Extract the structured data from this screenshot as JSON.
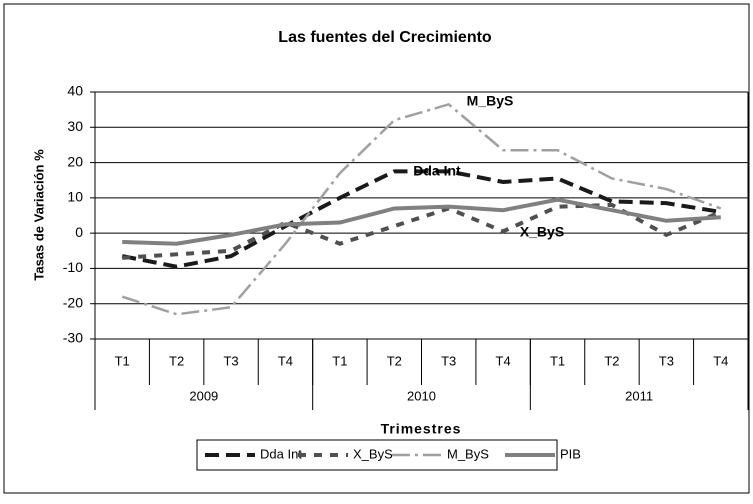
{
  "chart_data": {
    "type": "line",
    "title": "Las fuentes del Crecimiento",
    "x_label": "Trimestres",
    "y_label": "Tasas de Variación %",
    "categories": [
      "T1",
      "T2",
      "T3",
      "T4",
      "T1",
      "T2",
      "T3",
      "T4",
      "T1",
      "T2",
      "T3",
      "T4"
    ],
    "year_groups": [
      "2009",
      "2010",
      "2011"
    ],
    "series": [
      {
        "name": "Dda Int",
        "color": "#1a1a1a",
        "style": "dash",
        "values": [
          -6.5,
          -9.5,
          -6.5,
          2,
          10,
          17.5,
          17.5,
          14.5,
          15.5,
          9,
          8.5,
          6
        ]
      },
      {
        "name": "X_ByS",
        "color": "#505050",
        "style": "short-dash",
        "values": [
          -7,
          -6,
          -5,
          3,
          -3,
          2,
          7,
          0.5,
          7.5,
          8,
          -0.5,
          6
        ]
      },
      {
        "name": "M_ByS",
        "color": "#a0a0a0",
        "style": "dash-dot",
        "values": [
          -18,
          -23,
          -21,
          -3,
          17,
          32,
          36.5,
          23.5,
          23.5,
          15.5,
          12.5,
          7
        ]
      },
      {
        "name": "PIB",
        "color": "#808080",
        "style": "solid",
        "values": [
          -2.5,
          -3,
          -0.5,
          2.5,
          3,
          7,
          7.5,
          6.5,
          9.5,
          6.5,
          3.5,
          4.5
        ]
      }
    ],
    "annotations": [
      "M_ByS",
      "Dda Int",
      "X_ByS"
    ],
    "ylim": [
      -30,
      40
    ],
    "yticks": [
      -30,
      -20,
      -10,
      0,
      10,
      20,
      30,
      40
    ],
    "grid": true,
    "legend": "bottom"
  }
}
